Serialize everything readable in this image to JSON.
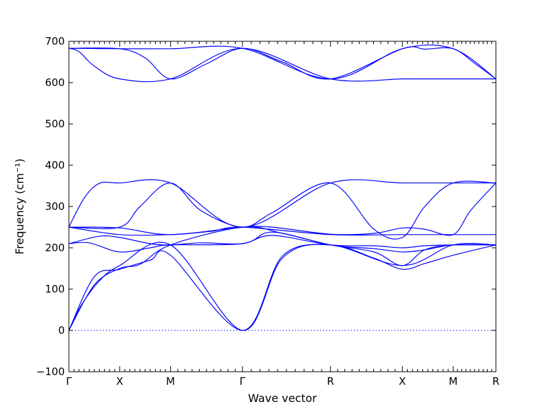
{
  "chart_data": {
    "type": "line",
    "title": "",
    "xlabel": "Wave vector",
    "ylabel": "Frequency (cm⁻¹)",
    "ylim": [
      -100,
      700
    ],
    "yticks": [
      "−100",
      "0",
      "100",
      "200",
      "300",
      "400",
      "500",
      "600",
      "700"
    ],
    "ytick_values": [
      -100,
      0,
      100,
      200,
      300,
      400,
      500,
      600,
      700
    ],
    "x_ticks": [
      {
        "label": "Γ",
        "x": 0.0
      },
      {
        "label": "X",
        "x": 0.5
      },
      {
        "label": "M",
        "x": 1.0
      },
      {
        "label": "Γ",
        "x": 1.707
      },
      {
        "label": "R",
        "x": 2.573
      },
      {
        "label": "X",
        "x": 3.28
      },
      {
        "label": "M",
        "x": 3.78
      },
      {
        "label": "R",
        "x": 4.2
      }
    ],
    "xlim": [
      0,
      4.2
    ],
    "grid": false,
    "line_color": "#0000ff",
    "zero_line": {
      "y": 0,
      "style": "dotted",
      "color": "#0000ff"
    },
    "series": [
      {
        "x": [
          0.0,
          0.5,
          1.0,
          1.707,
          2.573,
          3.28,
          3.78,
          4.2
        ],
        "values": [
          683,
          682,
          682,
          683,
          609,
          682,
          682,
          609
        ]
      },
      {
        "x": [
          0.0,
          0.1,
          0.25,
          0.5,
          1.0,
          1.707,
          2.573,
          3.28,
          3.5,
          3.78,
          4.2
        ],
        "values": [
          683,
          675,
          640,
          609,
          609,
          683,
          609,
          609,
          609,
          609,
          609
        ]
      },
      {
        "x": [
          0.0,
          0.5,
          0.75,
          1.0,
          1.35,
          1.707,
          2.1,
          2.573,
          3.28,
          3.5,
          3.78,
          4.0,
          4.2
        ],
        "values": [
          683,
          682,
          660,
          609,
          645,
          683,
          650,
          609,
          682,
          681,
          682,
          645,
          609
        ]
      },
      {
        "x": [
          0.0,
          0.15,
          0.3,
          0.5,
          1.0,
          1.707,
          2.573,
          3.28,
          3.78,
          4.2
        ],
        "values": [
          250,
          320,
          356,
          357,
          357,
          250,
          357,
          357,
          357,
          357
        ]
      },
      {
        "x": [
          0.0,
          0.5,
          0.7,
          1.0,
          1.3,
          1.707,
          2.0,
          2.573,
          3.0,
          3.28,
          3.5,
          3.78,
          4.2
        ],
        "values": [
          250,
          250,
          300,
          357,
          290,
          250,
          285,
          357,
          245,
          225,
          300,
          357,
          357
        ]
      },
      {
        "x": [
          0.0,
          0.5,
          1.0,
          1.707,
          2.0,
          2.573,
          3.0,
          3.28,
          3.5,
          3.78,
          3.95,
          4.2
        ],
        "values": [
          250,
          248,
          232,
          250,
          250,
          233,
          235,
          248,
          245,
          232,
          290,
          357
        ]
      },
      {
        "x": [
          0.0,
          0.5,
          1.0,
          1.4,
          1.707,
          2.573,
          3.28,
          3.78,
          4.2
        ],
        "values": [
          250,
          232,
          232,
          240,
          250,
          232,
          232,
          232,
          232
        ]
      },
      {
        "x": [
          0.0,
          0.2,
          0.5,
          0.8,
          1.0,
          1.707,
          2.0,
          2.573,
          3.0,
          3.28,
          3.5,
          3.78,
          4.2
        ],
        "values": [
          210,
          212,
          190,
          200,
          207,
          210,
          238,
          207,
          198,
          190,
          195,
          207,
          207
        ]
      },
      {
        "x": [
          0.0,
          0.3,
          0.5,
          0.8,
          1.0,
          1.3,
          1.707,
          2.0,
          2.573,
          3.0,
          3.28,
          3.5,
          3.78,
          4.2
        ],
        "values": [
          210,
          228,
          225,
          210,
          207,
          212,
          210,
          230,
          207,
          205,
          200,
          205,
          207,
          207
        ]
      },
      {
        "x": [
          0.0,
          0.25,
          0.5,
          0.7,
          1.0,
          1.707,
          2.1,
          2.573,
          3.0,
          3.28,
          3.5,
          3.78,
          4.2
        ],
        "values": [
          0,
          110,
          150,
          160,
          207,
          250,
          235,
          207,
          190,
          157,
          195,
          207,
          207
        ]
      },
      {
        "x": [
          0.0,
          0.25,
          0.5,
          0.8,
          1.0,
          1.707,
          2.1,
          2.573,
          3.0,
          3.28,
          3.5,
          3.78,
          4.2
        ],
        "values": [
          0,
          130,
          148,
          170,
          182,
          0,
          180,
          207,
          175,
          148,
          162,
          182,
          207
        ]
      },
      {
        "x": [
          0.0,
          0.12,
          0.3,
          0.5,
          1.0,
          1.707,
          2.1,
          2.573,
          3.28,
          3.78,
          4.2
        ],
        "values": [
          0,
          60,
          120,
          157,
          207,
          0,
          175,
          207,
          157,
          207,
          207
        ]
      }
    ]
  }
}
